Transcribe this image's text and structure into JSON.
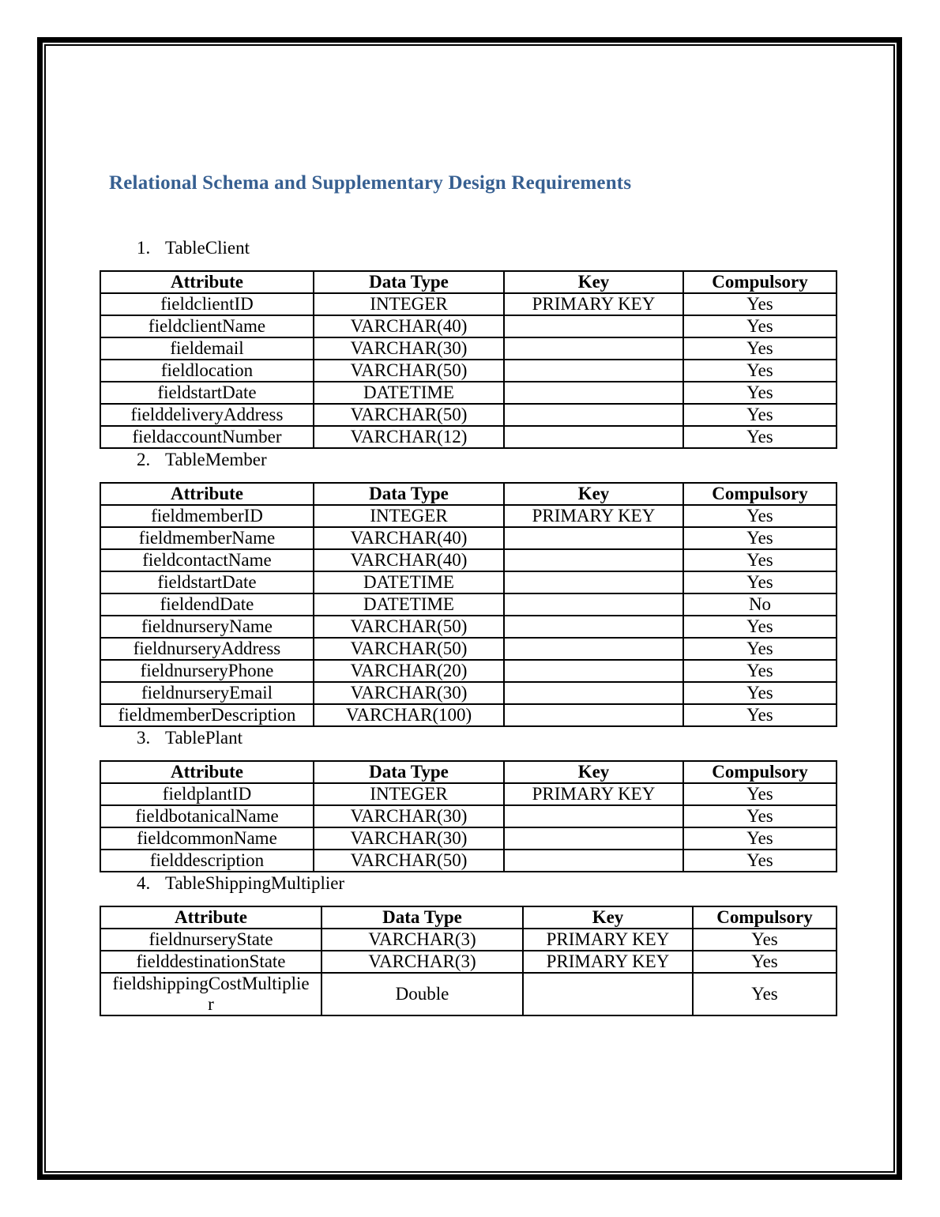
{
  "document": {
    "title": "Relational Schema and Supplementary Design Requirements"
  },
  "colors": {
    "title": "#365F91",
    "border": "#000000",
    "text": "#000000"
  },
  "tables": [
    {
      "number": "1.",
      "name": "TableClient",
      "headers": [
        "Attribute",
        "Data Type",
        "Key",
        "Compulsory"
      ],
      "rows": [
        [
          "fieldclientID",
          "INTEGER",
          "PRIMARY KEY",
          "Yes"
        ],
        [
          "fieldclientName",
          "VARCHAR(40)",
          "",
          "Yes"
        ],
        [
          "fieldemail",
          "VARCHAR(30)",
          "",
          "Yes"
        ],
        [
          "fieldlocation",
          "VARCHAR(50)",
          "",
          "Yes"
        ],
        [
          "fieldstartDate",
          "DATETIME",
          "",
          "Yes"
        ],
        [
          "fielddeliveryAddress",
          "VARCHAR(50)",
          "",
          "Yes"
        ],
        [
          "fieldaccountNumber",
          "VARCHAR(12)",
          "",
          "Yes"
        ]
      ]
    },
    {
      "number": "2.",
      "name": "TableMember",
      "headers": [
        "Attribute",
        "Data Type",
        "Key",
        "Compulsory"
      ],
      "rows": [
        [
          "fieldmemberID",
          "INTEGER",
          "PRIMARY KEY",
          "Yes"
        ],
        [
          "fieldmemberName",
          "VARCHAR(40)",
          "",
          "Yes"
        ],
        [
          "fieldcontactName",
          "VARCHAR(40)",
          "",
          "Yes"
        ],
        [
          "fieldstartDate",
          "DATETIME",
          "",
          "Yes"
        ],
        [
          "fieldendDate",
          "DATETIME",
          "",
          "No"
        ],
        [
          "fieldnurseryName",
          "VARCHAR(50)",
          "",
          "Yes"
        ],
        [
          "fieldnurseryAddress",
          "VARCHAR(50)",
          "",
          "Yes"
        ],
        [
          "fieldnurseryPhone",
          "VARCHAR(20)",
          "",
          "Yes"
        ],
        [
          "fieldnurseryEmail",
          "VARCHAR(30)",
          "",
          "Yes"
        ],
        [
          "fieldmemberDescription",
          "VARCHAR(100)",
          "",
          "Yes"
        ]
      ]
    },
    {
      "number": "3.",
      "name": "TablePlant",
      "headers": [
        "Attribute",
        "Data Type",
        "Key",
        "Compulsory"
      ],
      "rows": [
        [
          "fieldplantID",
          "INTEGER",
          "PRIMARY KEY",
          "Yes"
        ],
        [
          "fieldbotanicalName",
          "VARCHAR(30)",
          "",
          "Yes"
        ],
        [
          "fieldcommonName",
          "VARCHAR(30)",
          "",
          "Yes"
        ],
        [
          "fielddescription",
          "VARCHAR(50)",
          "",
          "Yes"
        ]
      ]
    },
    {
      "number": "4.",
      "name": "TableShippingMultiplier",
      "headers": [
        "Attribute",
        "Data Type",
        "Key",
        "Compulsory"
      ],
      "rows": [
        [
          "fieldnurseryState",
          "VARCHAR(3)",
          "PRIMARY KEY",
          "Yes"
        ],
        [
          "fielddestinationState",
          "VARCHAR(3)",
          "PRIMARY KEY",
          "Yes"
        ],
        [
          "fieldshippingCostMultiplier",
          "Double",
          "",
          "Yes"
        ]
      ]
    }
  ]
}
